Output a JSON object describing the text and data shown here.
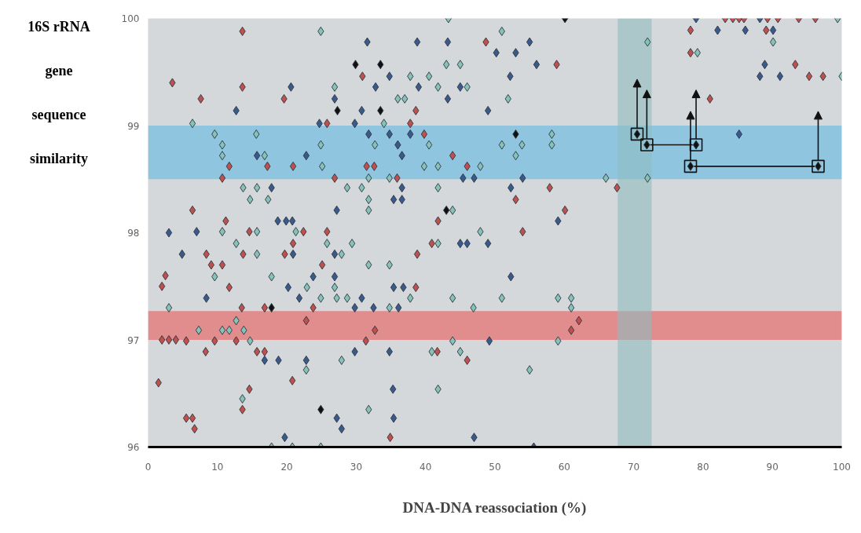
{
  "chart_data": {
    "type": "scatter",
    "xlabel": "DNA-DNA reassociation (%)",
    "ylabel": "16S rRNA gene sequence similarity",
    "xlim": [
      0,
      100
    ],
    "ylim": [
      96,
      100
    ],
    "xticks": [
      0,
      10,
      20,
      30,
      40,
      50,
      60,
      70,
      80,
      90,
      100
    ],
    "yticks": [
      96,
      97,
      98,
      99,
      100
    ],
    "marker": "diamond",
    "bands": [
      {
        "axis": "y",
        "from": 98.5,
        "to": 99,
        "color": "#8cc4e0"
      },
      {
        "axis": "y",
        "from": 97,
        "to": 97.27,
        "color": "#e2898a"
      },
      {
        "axis": "x",
        "from": 67.7,
        "to": 72.6,
        "color": "#8fbcbf"
      }
    ],
    "series": [
      {
        "color": "#c0504d",
        "x": [
          13.6,
          30.9,
          13.6,
          7.6,
          19.6,
          25.8,
          11.7,
          17.2,
          20.9,
          31.5,
          32.6,
          10.7,
          26.9,
          35.9,
          6.4,
          11.2,
          14.6,
          22.4,
          25.8,
          20.9,
          8.4,
          13.7,
          19.7,
          9.1,
          10.7,
          25.1,
          11.7,
          13.5,
          16.8,
          23.8,
          22.8,
          32.7,
          5.5,
          9.6,
          12.7,
          31.4,
          8.3,
          15.7,
          16.8,
          20.8,
          14.6,
          13.6,
          5.5,
          6.4,
          6.7,
          34.9,
          46.0,
          48.7,
          58.9,
          38.6,
          37.8,
          39.8,
          43.9,
          46.0,
          57.9,
          67.6,
          53.0,
          60.1,
          41.8,
          54.0,
          40.9,
          38.8,
          38.6,
          62.1,
          61.0,
          41.7,
          83.2,
          84.3,
          85.2,
          85.9,
          89.3,
          90.8,
          93.8,
          96.2,
          78.2,
          89.1,
          78.2,
          93.3,
          95.3,
          97.3,
          81.0,
          2.0,
          2.5,
          2.0,
          3.0,
          4.0,
          3.5,
          1.5
        ],
        "values": [
          99.88,
          99.46,
          99.36,
          99.25,
          99.25,
          99.02,
          98.62,
          98.62,
          98.62,
          98.62,
          98.62,
          98.51,
          98.51,
          98.51,
          98.21,
          98.11,
          98.01,
          98.01,
          98.01,
          97.9,
          97.8,
          97.8,
          97.8,
          97.7,
          97.7,
          97.7,
          97.49,
          97.3,
          97.3,
          97.3,
          97.18,
          97.09,
          96.99,
          96.99,
          96.99,
          96.99,
          96.89,
          96.89,
          96.89,
          96.62,
          96.54,
          96.35,
          96.27,
          96.27,
          96.17,
          96.09,
          96.81,
          99.78,
          99.57,
          99.14,
          99.02,
          98.92,
          98.72,
          98.62,
          98.42,
          98.42,
          98.31,
          98.21,
          98.11,
          98.01,
          97.9,
          97.8,
          97.49,
          97.18,
          97.09,
          96.89,
          100,
          100,
          100,
          100,
          100,
          100,
          100,
          100,
          99.89,
          99.89,
          99.68,
          99.57,
          99.46,
          99.46,
          99.25,
          97.5,
          97.6,
          97.0,
          97.0,
          97.0,
          99.4,
          96.6
        ]
      },
      {
        "color": "#3b5a8c",
        "x": [
          31.6,
          34.8,
          20.6,
          32.8,
          26.9,
          12.7,
          30.8,
          24.7,
          29.8,
          31.8,
          34.8,
          36.0,
          15.7,
          22.8,
          36.6,
          17.8,
          36.6,
          35.4,
          36.6,
          27.2,
          18.7,
          19.9,
          20.8,
          7.0,
          4.9,
          20.9,
          26.9,
          23.8,
          26.9,
          20.2,
          35.4,
          36.8,
          8.4,
          21.8,
          30.8,
          29.8,
          32.5,
          36.1,
          29.8,
          34.8,
          16.8,
          18.8,
          22.8,
          35.3,
          27.2,
          35.4,
          27.9,
          19.7,
          47.0,
          55.6,
          38.8,
          43.2,
          55.0,
          50.2,
          53.0,
          56.0,
          52.2,
          39.0,
          45.0,
          43.2,
          49.0,
          37.8,
          45.4,
          47.0,
          54.0,
          52.3,
          59.1,
          45.0,
          46.0,
          49.0,
          52.3,
          49.2,
          79.0,
          88.2,
          82.1,
          86.1,
          90.1,
          88.9,
          88.2,
          91.1,
          85.2,
          3.0
        ],
        "values": [
          99.78,
          99.46,
          99.36,
          99.36,
          99.25,
          99.14,
          99.14,
          99.02,
          99.02,
          98.92,
          98.92,
          98.82,
          98.72,
          98.72,
          98.72,
          98.42,
          98.42,
          98.31,
          98.31,
          98.21,
          98.11,
          98.11,
          98.11,
          98.01,
          97.8,
          97.8,
          97.8,
          97.59,
          97.59,
          97.49,
          97.49,
          97.49,
          97.39,
          97.39,
          97.39,
          97.3,
          97.3,
          97.3,
          96.89,
          96.89,
          96.81,
          96.81,
          96.81,
          96.54,
          96.27,
          96.27,
          96.17,
          96.09,
          96.09,
          96.0,
          99.78,
          99.78,
          99.78,
          99.68,
          99.68,
          99.57,
          99.46,
          99.36,
          99.36,
          99.25,
          99.14,
          98.92,
          98.51,
          98.51,
          98.51,
          98.42,
          98.11,
          97.9,
          97.9,
          97.9,
          97.59,
          96.99,
          100,
          100,
          99.89,
          99.89,
          99.89,
          99.57,
          99.46,
          99.46,
          98.92,
          98.0
        ]
      },
      {
        "color": "#86c2b8",
        "x": [
          24.9,
          26.9,
          36.0,
          37.0,
          6.4,
          34.0,
          9.6,
          15.6,
          10.7,
          24.9,
          32.7,
          10.7,
          16.8,
          25.1,
          31.8,
          34.8,
          13.7,
          15.7,
          28.7,
          30.8,
          14.7,
          17.3,
          31.8,
          31.8,
          10.7,
          15.7,
          21.3,
          12.7,
          25.8,
          29.4,
          15.7,
          27.9,
          31.8,
          34.8,
          9.6,
          17.8,
          22.9,
          26.9,
          24.9,
          27.2,
          28.7,
          34.8,
          12.7,
          7.3,
          10.7,
          11.7,
          13.8,
          14.7,
          22.8,
          27.9,
          13.6,
          31.8,
          17.8,
          20.8,
          24.9,
          55.0,
          41.8,
          43.3,
          51.0,
          43.0,
          45.0,
          37.8,
          40.5,
          41.8,
          46.0,
          51.9,
          58.2,
          40.5,
          51.0,
          53.9,
          58.2,
          53.0,
          39.8,
          41.8,
          47.9,
          66.0,
          41.8,
          43.9,
          47.9,
          41.8,
          37.8,
          43.9,
          51.0,
          59.1,
          61.0,
          46.9,
          61.0,
          43.9,
          59.1,
          40.9,
          45.0,
          99.4,
          72.0,
          90.1,
          79.2,
          100,
          72.0,
          3.0
        ],
        "values": [
          99.88,
          99.36,
          99.25,
          99.25,
          99.02,
          99.02,
          98.92,
          98.92,
          98.82,
          98.82,
          98.82,
          98.72,
          98.72,
          98.62,
          98.51,
          98.51,
          98.42,
          98.42,
          98.42,
          98.42,
          98.31,
          98.31,
          98.31,
          98.21,
          98.01,
          98.01,
          98.01,
          97.9,
          97.9,
          97.9,
          97.8,
          97.8,
          97.7,
          97.7,
          97.59,
          97.59,
          97.49,
          97.49,
          97.39,
          97.39,
          97.39,
          97.3,
          97.18,
          97.09,
          97.09,
          97.09,
          97.09,
          96.99,
          96.72,
          96.81,
          96.45,
          96.35,
          96.0,
          96.0,
          96.0,
          96.72,
          96.54,
          100,
          99.88,
          99.57,
          99.57,
          99.46,
          99.46,
          99.36,
          99.36,
          99.25,
          98.92,
          98.82,
          98.82,
          98.82,
          98.82,
          98.72,
          98.62,
          98.62,
          98.62,
          98.51,
          98.42,
          98.21,
          98.01,
          97.9,
          97.39,
          97.39,
          97.39,
          97.39,
          97.39,
          97.3,
          97.3,
          96.99,
          96.99,
          96.89,
          96.89,
          100,
          99.78,
          99.78,
          99.68,
          99.46,
          98.51,
          97.3
        ]
      },
      {
        "color": "#111111",
        "x": [
          29.9,
          33.5,
          27.3,
          33.5,
          17.8,
          24.9,
          60.1,
          43.0,
          53.0,
          70.5,
          71.9,
          79.0,
          78.2,
          96.6
        ],
        "values": [
          99.57,
          99.57,
          99.14,
          99.14,
          97.3,
          96.35,
          100,
          98.21,
          98.92,
          98.92,
          98.82,
          98.82,
          98.62,
          98.62
        ]
      },
      {
        "color": "#111111",
        "marker": "square",
        "x": [
          70.5,
          71.9,
          79.0,
          78.2,
          96.6
        ],
        "values": [
          98.92,
          98.82,
          98.82,
          98.62,
          98.62
        ]
      },
      {
        "type": "line",
        "marker": "none",
        "color": "#111111",
        "x": [
          72.4,
          78.5
        ],
        "values": [
          98.82,
          98.82
        ]
      },
      {
        "type": "line",
        "marker": "none",
        "color": "#111111",
        "x": [
          78.7,
          96.1
        ],
        "values": [
          98.62,
          98.62
        ]
      }
    ]
  }
}
